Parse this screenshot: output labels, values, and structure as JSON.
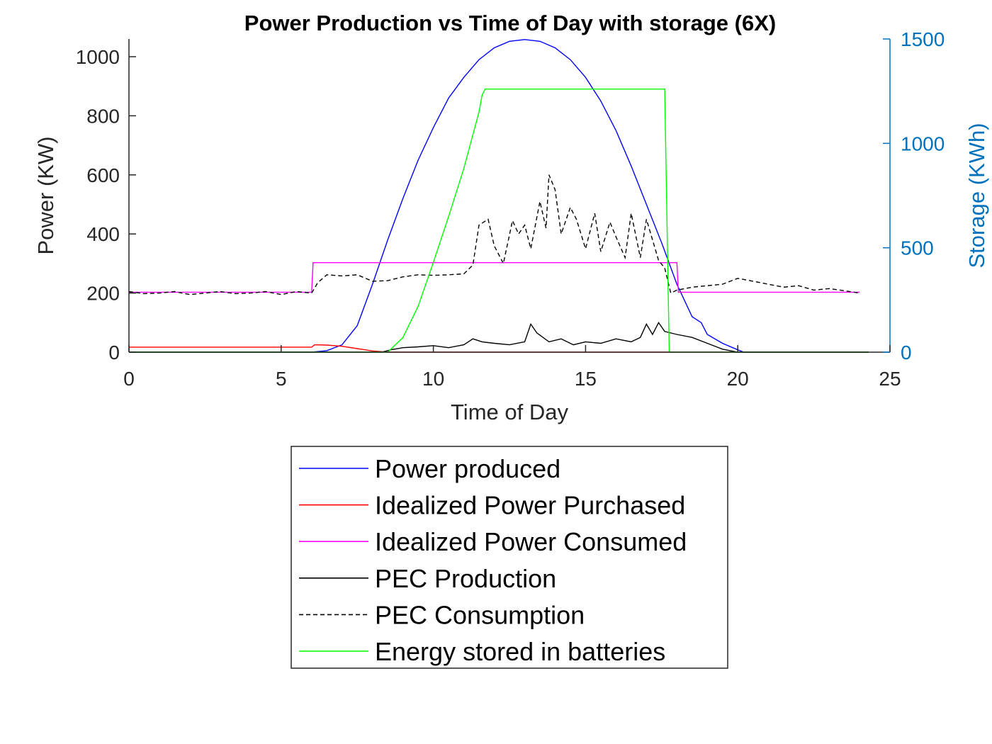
{
  "chart_data": {
    "type": "line",
    "title": "Power Production vs Time of Day with storage (6X)",
    "xlabel": "Time of Day",
    "ylabel": "Power (KW)",
    "y2label": "Storage (KWh)",
    "xlim": [
      0,
      25
    ],
    "ylim": [
      0,
      1060
    ],
    "y2lim": [
      0,
      1500
    ],
    "xticks": [
      0,
      5,
      10,
      15,
      20,
      25
    ],
    "yticks": [
      0,
      200,
      400,
      600,
      800,
      1000
    ],
    "y2ticks": [
      0,
      500,
      1000,
      1500
    ],
    "grid": false,
    "legend_position": "below",
    "series": [
      {
        "name": "Power produced",
        "axis": "left",
        "color": "#0000ff",
        "dash": "solid",
        "x": [
          0,
          6,
          6.5,
          7,
          7.5,
          8,
          8.5,
          9,
          9.5,
          10,
          10.5,
          11,
          11.5,
          12,
          12.5,
          13,
          13.5,
          14,
          14.5,
          15,
          15.5,
          16,
          16.5,
          17,
          17.5,
          18,
          18.5,
          18.8,
          19,
          19.5,
          20,
          20.2,
          24.3
        ],
        "values": [
          0,
          0,
          5,
          25,
          90,
          230,
          380,
          520,
          650,
          760,
          860,
          930,
          990,
          1030,
          1052,
          1058,
          1052,
          1030,
          990,
          930,
          850,
          750,
          630,
          500,
          370,
          230,
          120,
          100,
          60,
          30,
          8,
          0,
          0
        ]
      },
      {
        "name": "Idealized Power Purchased",
        "axis": "left",
        "color": "#ff0000",
        "dash": "solid",
        "x": [
          0,
          6,
          6.1,
          6.5,
          7,
          7.5,
          8,
          8.5,
          24.3
        ],
        "values": [
          17,
          17,
          25,
          24,
          20,
          12,
          4,
          0,
          0
        ]
      },
      {
        "name": "Idealized Power Consumed",
        "axis": "left",
        "color": "#ff00ff",
        "dash": "solid",
        "x": [
          0,
          6,
          6.05,
          18,
          18.05,
          24
        ],
        "values": [
          203,
          203,
          303,
          303,
          203,
          203
        ]
      },
      {
        "name": "PEC Production",
        "axis": "left",
        "color": "#000000",
        "dash": "solid",
        "x": [
          0,
          8.3,
          8.6,
          9,
          9.5,
          10,
          10.5,
          11,
          11.3,
          11.6,
          12,
          12.5,
          13,
          13.2,
          13.4,
          13.8,
          14.2,
          14.6,
          15,
          15.5,
          16,
          16.5,
          16.8,
          17,
          17.2,
          17.4,
          17.6,
          18,
          18.5,
          19,
          19.5,
          20,
          24.3
        ],
        "values": [
          0,
          0,
          8,
          15,
          18,
          22,
          15,
          25,
          45,
          35,
          30,
          25,
          35,
          95,
          65,
          35,
          45,
          25,
          35,
          30,
          45,
          35,
          50,
          95,
          60,
          100,
          70,
          60,
          50,
          30,
          10,
          0,
          0
        ]
      },
      {
        "name": "PEC Consumption",
        "axis": "left",
        "color": "#000000",
        "dash": "dashed",
        "x": [
          0,
          0.5,
          1,
          1.5,
          2,
          2.5,
          3,
          3.5,
          4,
          4.5,
          5,
          5.5,
          6,
          6.2,
          6.5,
          7,
          7.5,
          8,
          8.5,
          9,
          9.5,
          10,
          10.5,
          11,
          11.3,
          11.5,
          11.8,
          12,
          12.3,
          12.6,
          12.8,
          13,
          13.2,
          13.5,
          13.7,
          13.8,
          14,
          14.2,
          14.5,
          14.7,
          15,
          15.3,
          15.5,
          15.8,
          16,
          16.3,
          16.5,
          16.8,
          17,
          17.2,
          17.4,
          17.6,
          17.8,
          18,
          18.5,
          19,
          19.5,
          20,
          20.5,
          21,
          21.5,
          22,
          22.5,
          23,
          23.5,
          24
        ],
        "values": [
          205,
          198,
          200,
          205,
          195,
          200,
          205,
          198,
          200,
          205,
          195,
          205,
          200,
          235,
          262,
          258,
          262,
          240,
          242,
          255,
          262,
          260,
          262,
          265,
          295,
          430,
          450,
          360,
          300,
          445,
          400,
          430,
          350,
          510,
          420,
          600,
          550,
          400,
          490,
          450,
          350,
          470,
          340,
          440,
          390,
          320,
          470,
          320,
          450,
          380,
          310,
          285,
          200,
          210,
          220,
          225,
          230,
          250,
          240,
          230,
          220,
          225,
          210,
          215,
          208,
          200
        ]
      },
      {
        "name": "Energy stored in batteries",
        "axis": "right",
        "color": "#00ff00",
        "dash": "solid",
        "x": [
          0,
          8.5,
          9,
          9.5,
          10,
          10.5,
          11,
          11.5,
          11.6,
          11.7,
          17.6,
          17.75,
          24.3
        ],
        "values": [
          0,
          0,
          70,
          220,
          430,
          650,
          880,
          1150,
          1230,
          1260,
          1260,
          0,
          0
        ]
      }
    ]
  }
}
